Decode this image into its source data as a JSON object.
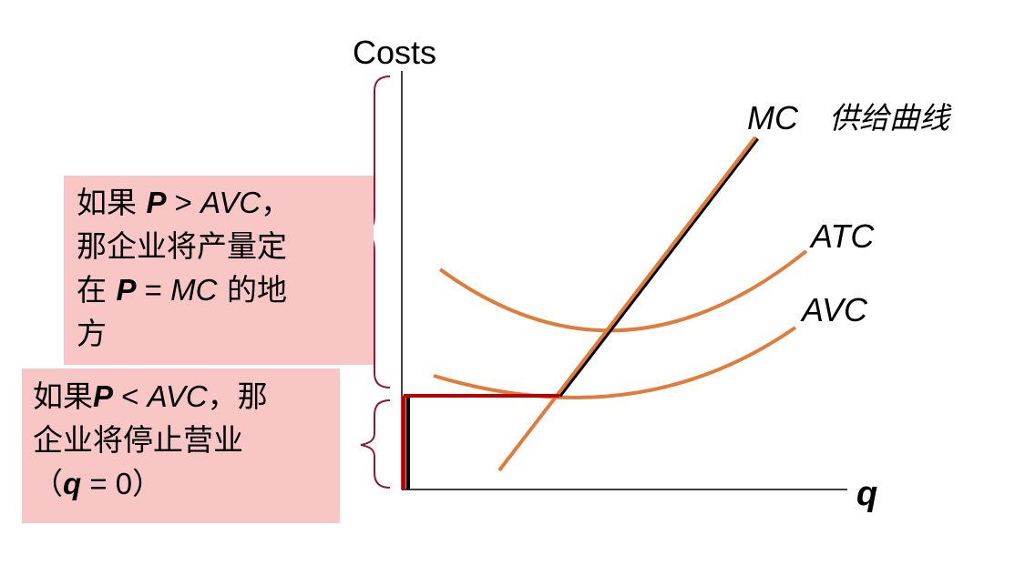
{
  "y_axis_label": "Costs",
  "x_axis_label": "q",
  "curves": {
    "mc": "MC",
    "supply": "供给曲线",
    "atc": "ATC",
    "avc": "AVC"
  },
  "note_above": {
    "t1": "如果 ",
    "p": "P",
    "t2": " > ",
    "avc": "AVC",
    "t3": "，",
    "line2": "那企业将产量定",
    "t4": "在 ",
    "p2": "P",
    "t5": " = ",
    "mc": "MC",
    "t6": " 的地",
    "line4": "方"
  },
  "note_below": {
    "t1": "如果",
    "p": "P",
    "t2": " < ",
    "avc": "AVC",
    "t3": "，那",
    "line2": "企业将停止营业",
    "t4": "（",
    "q": "q",
    "t5": " = ",
    "zero": "0",
    "t6": "）"
  },
  "colors": {
    "cost_curves": "#e07b39",
    "supply_highlight": "#000000",
    "shutdown_segment": "#c00000",
    "brace": "#8b1a3a",
    "note_bg": "#f9c6c6"
  }
}
